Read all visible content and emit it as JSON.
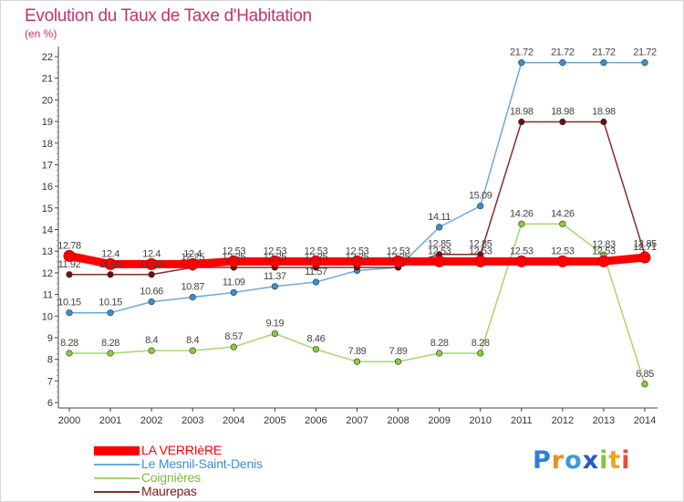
{
  "chart_data": {
    "type": "line",
    "title": "Evolution du Taux de Taxe d'Habitation",
    "subtitle": "(en %)",
    "xlabel": "",
    "ylabel": "",
    "x": [
      2000,
      2001,
      2002,
      2003,
      2004,
      2005,
      2006,
      2007,
      2008,
      2009,
      2010,
      2011,
      2012,
      2013,
      2014
    ],
    "ylim": [
      6,
      22
    ],
    "yticks": [
      6,
      7,
      8,
      9,
      10,
      11,
      12,
      13,
      14,
      15,
      16,
      17,
      18,
      19,
      20,
      21,
      22
    ],
    "grid": false,
    "legend_position": "bottom-left",
    "series": [
      {
        "name": "LA VERRIèRE",
        "color": "#ff0000",
        "line_color": "#ff0000",
        "values": [
          12.78,
          12.4,
          12.4,
          12.4,
          12.53,
          12.53,
          12.53,
          12.53,
          12.53,
          12.53,
          12.53,
          12.53,
          12.53,
          12.53,
          12.71
        ],
        "labels": [
          "12.78",
          "12.4",
          "12.4",
          "12.4",
          "12.53",
          "12.53",
          "12.53",
          "12.53",
          "12.53",
          "12.53",
          "12.53",
          "12.53",
          "12.53",
          "12.53",
          "12.71"
        ]
      },
      {
        "name": "Le Mesnil-Saint-Denis",
        "color": "#3a8fd0",
        "line_color": "#6aa9dc",
        "values": [
          10.15,
          10.15,
          10.66,
          10.87,
          11.09,
          11.37,
          11.57,
          12.1,
          12.25,
          14.11,
          15.09,
          21.72,
          21.72,
          21.72,
          21.72
        ],
        "labels": [
          "10.15",
          "10.15",
          "10.66",
          "10.87",
          "11.09",
          "11.37",
          "11.57",
          "",
          "",
          "14.11",
          "15.09",
          "21.72",
          "21.72",
          "21.72",
          "21.72"
        ]
      },
      {
        "name": "Coignières",
        "color": "#8acb3c",
        "line_color": "#a6d86a",
        "values": [
          8.28,
          8.28,
          8.4,
          8.4,
          8.57,
          9.19,
          8.46,
          7.89,
          7.89,
          8.28,
          8.28,
          14.26,
          14.26,
          12.83,
          6.85
        ],
        "labels": [
          "8.28",
          "8.28",
          "8.4",
          "8.4",
          "8.57",
          "9.19",
          "8.46",
          "7.89",
          "7.89",
          "8.28",
          "8.28",
          "14.26",
          "14.26",
          "12.83",
          "6.85"
        ]
      },
      {
        "name": "Maurepas",
        "color": "#6b0f0f",
        "line_color": "#8a2a2a",
        "values": [
          11.92,
          11.92,
          11.92,
          12.25,
          12.25,
          12.25,
          12.25,
          12.25,
          12.25,
          12.85,
          12.85,
          18.98,
          18.98,
          18.98,
          12.85
        ],
        "labels": [
          "11.92",
          "11.92",
          "11.92",
          "12.25",
          "12.25",
          "12.25",
          "12.25",
          "12.25",
          "12.25",
          "12.85",
          "12.85",
          "18.98",
          "18.98",
          "18.98",
          "12.85"
        ]
      }
    ]
  },
  "legend": {
    "items": [
      {
        "label": "LA VERRIèRE",
        "color": "#ff0000"
      },
      {
        "label": "Le Mesnil-Saint-Denis",
        "color": "#6aa9dc"
      },
      {
        "label": "Coignières",
        "color": "#a6d86a"
      },
      {
        "label": "Maurepas",
        "color": "#8a2a2a"
      }
    ]
  },
  "logo": {
    "p": "P",
    "r": "r",
    "o": "o",
    "x": "x",
    "i": "i",
    "t": "t",
    "i2": "i"
  }
}
